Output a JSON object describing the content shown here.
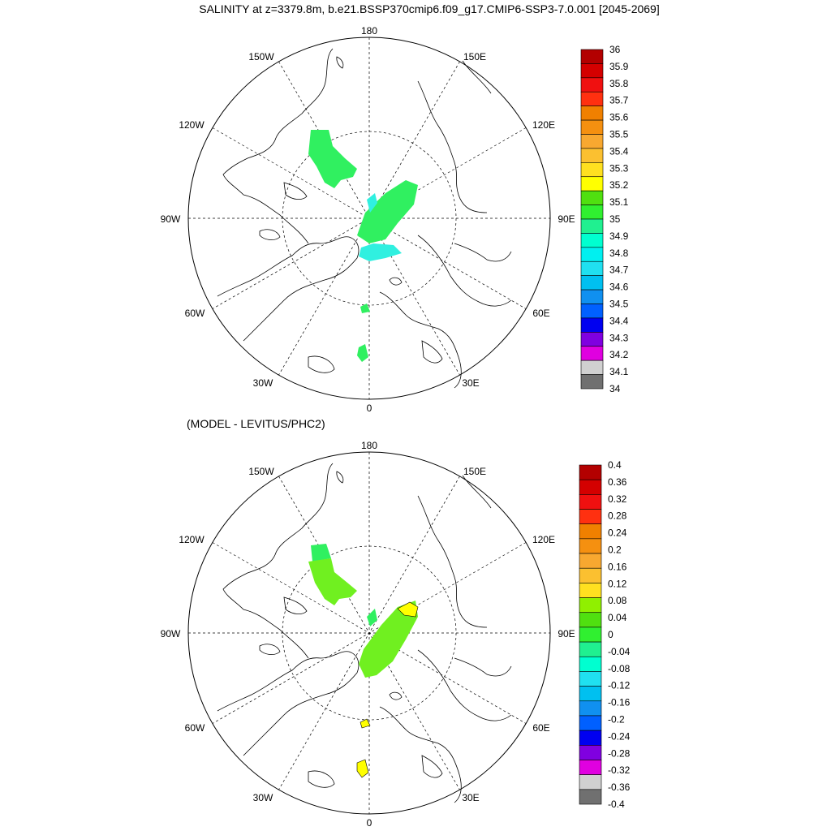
{
  "title": "SALINITY at z=3379.8m, b.e21.BSSP370cmip6.f09_g17.CMIP6-SSP3-7.0.001 [2045-2069]",
  "subtitle": "(MODEL - LEVITUS/PHC2)",
  "longitude_labels": {
    "top": "180",
    "upper_left": "150W",
    "upper_right": "150E",
    "mid_upper_left": "120W",
    "mid_upper_right": "120E",
    "left": "90W",
    "right": "90E",
    "mid_lower_left": "60W",
    "mid_lower_right": "60E",
    "lower_left": "30W",
    "lower_right": "30E",
    "bottom": "0"
  },
  "colorbar_top": {
    "labels": [
      "36",
      "35.9",
      "35.8",
      "35.7",
      "35.6",
      "35.5",
      "35.4",
      "35.3",
      "35.2",
      "35.1",
      "35",
      "34.9",
      "34.8",
      "34.7",
      "34.6",
      "34.5",
      "34.4",
      "34.3",
      "34.2",
      "34.1",
      "34"
    ],
    "colors": [
      "#b30000",
      "#d40000",
      "#f01010",
      "#ff3010",
      "#f08000",
      "#f59010",
      "#f8a830",
      "#fbc030",
      "#ffe020",
      "#ffff00",
      "#50e010",
      "#30f030",
      "#20f090",
      "#00ffd0",
      "#00f0f0",
      "#20e0f0",
      "#00c0f0",
      "#1090f0",
      "#0060ff",
      "#0000f0",
      "#8000e0",
      "#e000e0",
      "#d0d0d0",
      "#707070"
    ]
  },
  "colorbar_bottom": {
    "labels": [
      "0.4",
      "0.36",
      "0.32",
      "0.28",
      "0.24",
      "0.2",
      "0.16",
      "0.12",
      "0.08",
      "0.04",
      "0",
      "-0.04",
      "-0.08",
      "-0.12",
      "-0.16",
      "-0.2",
      "-0.24",
      "-0.28",
      "-0.32",
      "-0.36",
      "-0.4"
    ],
    "colors": [
      "#b30000",
      "#d40000",
      "#f01010",
      "#ff3010",
      "#f08000",
      "#f59010",
      "#f8a830",
      "#fbc030",
      "#ffe020",
      "#90f000",
      "#50e010",
      "#30f030",
      "#20f090",
      "#00ffd0",
      "#20e0f0",
      "#00c0f0",
      "#1090f0",
      "#0060ff",
      "#0000f0",
      "#8000e0",
      "#e000e0",
      "#d0d0d0",
      "#707070"
    ]
  },
  "map_top": {
    "field_colors": [
      "#30f060",
      "#30f0e0"
    ]
  },
  "map_bottom": {
    "field_colors": [
      "#70f020",
      "#30f060",
      "#ffff00"
    ]
  }
}
